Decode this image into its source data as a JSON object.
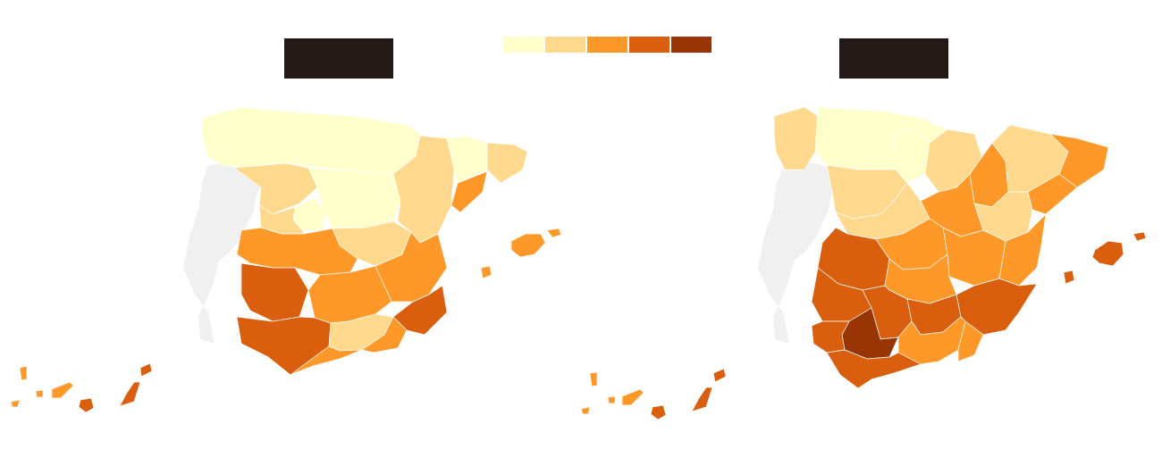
{
  "maps": [
    {
      "id": "left",
      "title": ""
    },
    {
      "id": "right",
      "title": ""
    }
  ],
  "legend": {
    "colors": [
      "#ffffcc",
      "#fed98e",
      "#fe9929",
      "#d95f0e",
      "#993404"
    ]
  },
  "colors": {
    "portugal": "#f0f0f0",
    "border": "#ffffff",
    "title_box": "#231a17"
  }
}
